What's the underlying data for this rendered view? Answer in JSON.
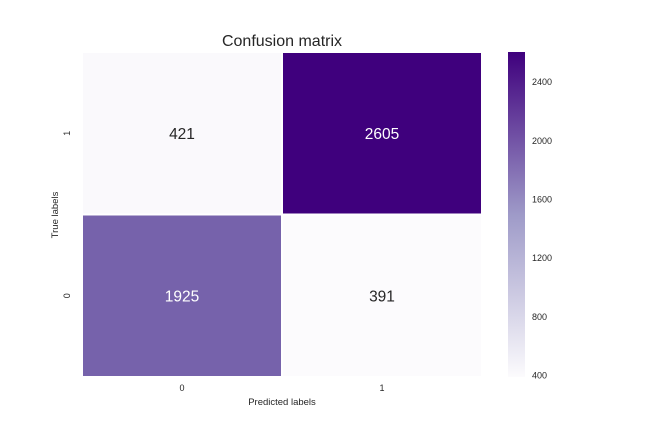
{
  "chart_data": {
    "type": "heatmap",
    "title": "Confusion matrix",
    "xlabel": "Predicted labels",
    "ylabel": "True labels",
    "x_categories": [
      "0",
      "1"
    ],
    "y_categories_top_to_bottom": [
      "1",
      "0"
    ],
    "values_top_to_bottom": [
      [
        421,
        2605
      ],
      [
        1925,
        391
      ]
    ],
    "colormap": "Purples",
    "color_low": "#fcfbfd",
    "color_high": "#3f007d",
    "vmin": 391,
    "vmax": 2605,
    "colorbar_ticks": [
      400,
      800,
      1200,
      1600,
      2000,
      2400
    ]
  }
}
